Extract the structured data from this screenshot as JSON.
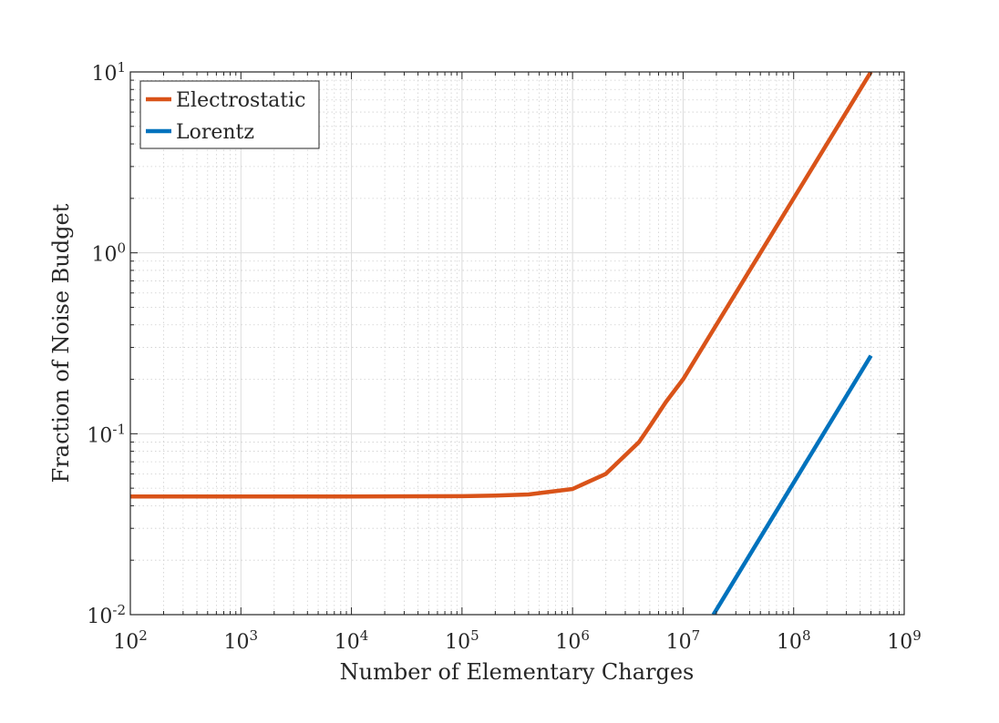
{
  "chart_data": {
    "type": "line",
    "xscale": "log",
    "yscale": "log",
    "xlabel": "Number of Elementary Charges",
    "ylabel": "Fraction of Noise Budget",
    "xlim": [
      100,
      1000000000
    ],
    "ylim": [
      0.01,
      10
    ],
    "grid": true,
    "minor_grid": true,
    "legend_position": "top-left",
    "x_ticks": [
      {
        "base": "10",
        "exp": "2",
        "value": 100
      },
      {
        "base": "10",
        "exp": "3",
        "value": 1000
      },
      {
        "base": "10",
        "exp": "4",
        "value": 10000
      },
      {
        "base": "10",
        "exp": "5",
        "value": 100000
      },
      {
        "base": "10",
        "exp": "6",
        "value": 1000000
      },
      {
        "base": "10",
        "exp": "7",
        "value": 10000000
      },
      {
        "base": "10",
        "exp": "8",
        "value": 100000000
      },
      {
        "base": "10",
        "exp": "9",
        "value": 1000000000
      }
    ],
    "y_ticks": [
      {
        "base": "10",
        "exp": "-2",
        "value": 0.01
      },
      {
        "base": "10",
        "exp": "-1",
        "value": 0.1
      },
      {
        "base": "10",
        "exp": "0",
        "value": 1
      },
      {
        "base": "10",
        "exp": "1",
        "value": 10
      }
    ],
    "series": [
      {
        "name": "Electrostatic",
        "color": "#D95319",
        "x": [
          100,
          1000,
          10000,
          100000,
          200000,
          400000,
          1000000,
          2000000,
          4000000,
          5000000,
          7000000,
          10000000,
          20000000,
          50000000,
          100000000,
          200000000,
          500000000
        ],
        "y": [
          0.045,
          0.045,
          0.045,
          0.0452,
          0.0455,
          0.0462,
          0.0495,
          0.06,
          0.09,
          0.11,
          0.15,
          0.2,
          0.4,
          1.0,
          2.0,
          4.0,
          10.0
        ]
      },
      {
        "name": "Lorentz",
        "color": "#0072BD",
        "x": [
          18800000,
          500000000
        ],
        "y": [
          0.01,
          0.27
        ]
      }
    ]
  }
}
